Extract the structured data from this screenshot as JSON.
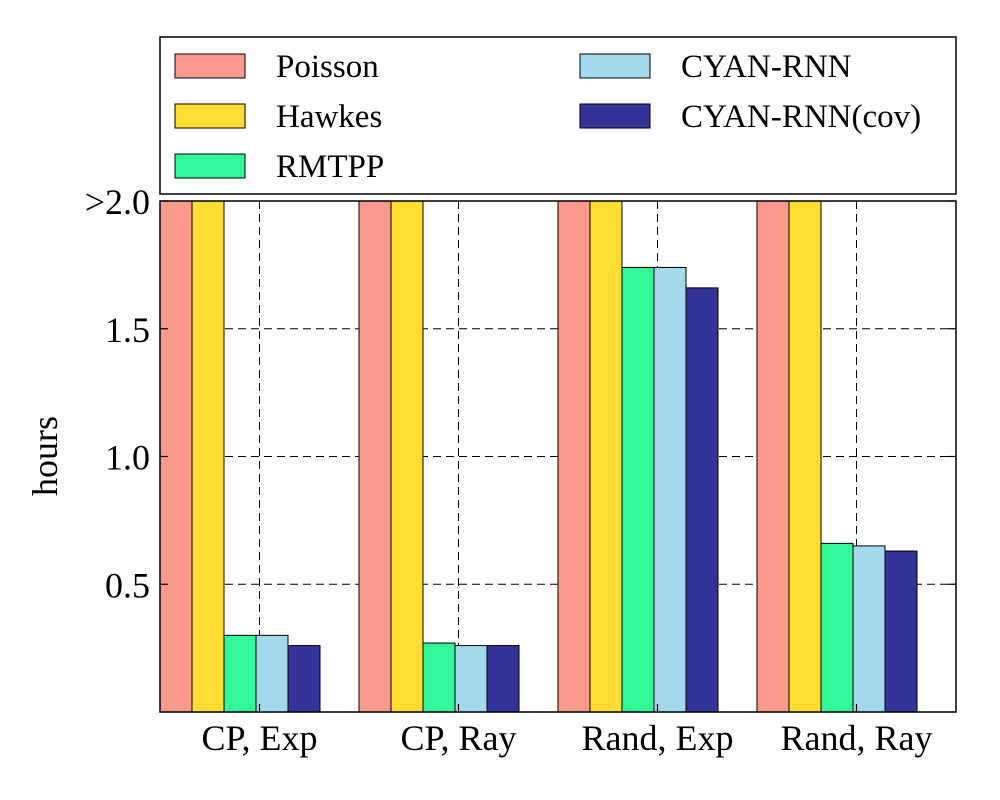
{
  "chart_data": {
    "type": "bar",
    "title": "",
    "xlabel": "",
    "ylabel": "hours",
    "ylim": [
      0,
      2.0
    ],
    "yticks": [
      {
        "value": 0.5,
        "label": "0.5"
      },
      {
        "value": 1.0,
        "label": "1.0"
      },
      {
        "value": 1.5,
        "label": "1.5"
      },
      {
        "value": 2.0,
        "label": ">2.0"
      }
    ],
    "grid": true,
    "legend_position": "top",
    "categories": [
      "CP, Exp",
      "CP, Ray",
      "Rand, Exp",
      "Rand, Ray"
    ],
    "series": [
      {
        "name": "Poisson",
        "color": "#fa9a8c",
        "values": [
          2.0,
          2.0,
          2.0,
          2.0
        ]
      },
      {
        "name": "Hawkes",
        "color": "#ffdd33",
        "values": [
          2.0,
          2.0,
          2.0,
          2.0
        ]
      },
      {
        "name": "RMTPP",
        "color": "#33f89a",
        "values": [
          0.3,
          0.27,
          1.74,
          0.66
        ]
      },
      {
        "name": "CYAN-RNN",
        "color": "#a4d8ec",
        "values": [
          0.3,
          0.26,
          1.74,
          0.65
        ]
      },
      {
        "name": "CYAN-RNN(cov)",
        "color": "#333399",
        "values": [
          0.26,
          0.26,
          1.66,
          0.63
        ]
      }
    ]
  }
}
